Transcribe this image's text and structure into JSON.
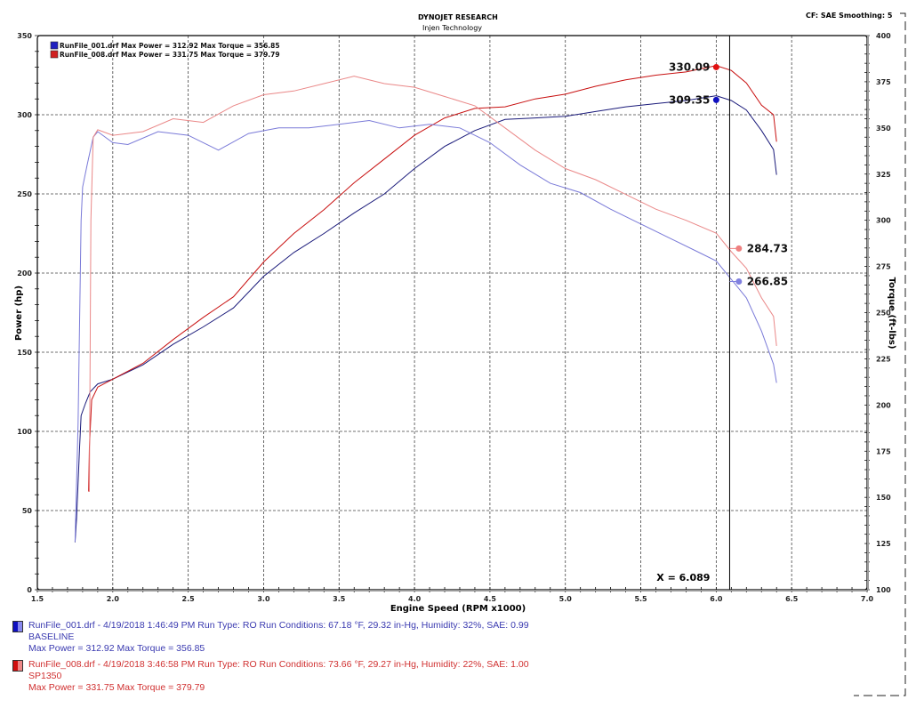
{
  "header": {
    "title": "DYNOJET RESEARCH",
    "subtitle": "Injen Technology",
    "settings": "CF: SAE  Smoothing: 5"
  },
  "chart_data": {
    "type": "line",
    "xlabel": "Engine Speed (RPM x1000)",
    "ylabel_left": "Power (hp)",
    "ylabel_right": "Torque (ft-lbs)",
    "xlim": [
      1.5,
      7.0
    ],
    "ylim_left": [
      0,
      350
    ],
    "ylim_right": [
      100,
      400
    ],
    "x_ticks": [
      "1.5",
      "2.0",
      "2.5",
      "3.0",
      "3.5",
      "4.0",
      "4.5",
      "5.0",
      "5.5",
      "6.0",
      "6.5",
      "7.0"
    ],
    "y_left_ticks": [
      "0",
      "50",
      "100",
      "150",
      "200",
      "250",
      "300",
      "350"
    ],
    "y_right_ticks": [
      "100",
      "125",
      "150",
      "175",
      "200",
      "225",
      "250",
      "275",
      "300",
      "325",
      "350",
      "375",
      "400"
    ],
    "grid": true,
    "legend": [
      {
        "label": "RunFile_001.drf Max Power = 312.92    Max Torque = 356.85",
        "color": "#2020c0"
      },
      {
        "label": "RunFile_008.drf Max Power = 331.75    Max Torque = 379.79",
        "color": "#d02020"
      }
    ],
    "legend_placement": "top-left",
    "cursor": {
      "x": 6.089,
      "label": "X = 6.089"
    },
    "annotations": [
      {
        "text": "330.09",
        "series": "RunFile_008 Power",
        "color": "#e01010"
      },
      {
        "text": "309.35",
        "series": "RunFile_001 Power",
        "color": "#1010c0"
      },
      {
        "text": "284.73",
        "series": "RunFile_008 Torque",
        "color": "#ee8080"
      },
      {
        "text": "266.85",
        "series": "RunFile_001 Torque",
        "color": "#8080e0"
      }
    ],
    "series": [
      {
        "run": "RunFile_001",
        "quantity": "power",
        "axis": "left",
        "color": "#1a1a7a",
        "points": [
          [
            1.75,
            30
          ],
          [
            1.76,
            45
          ],
          [
            1.78,
            90
          ],
          [
            1.79,
            110
          ],
          [
            1.82,
            118
          ],
          [
            1.85,
            125
          ],
          [
            1.9,
            130
          ],
          [
            2.0,
            133
          ],
          [
            2.2,
            142
          ],
          [
            2.4,
            155
          ],
          [
            2.6,
            166
          ],
          [
            2.8,
            178
          ],
          [
            3.0,
            198
          ],
          [
            3.2,
            213
          ],
          [
            3.4,
            225
          ],
          [
            3.6,
            238
          ],
          [
            3.8,
            250
          ],
          [
            4.0,
            266
          ],
          [
            4.2,
            280
          ],
          [
            4.4,
            290
          ],
          [
            4.6,
            297
          ],
          [
            4.8,
            298
          ],
          [
            5.0,
            299
          ],
          [
            5.2,
            302
          ],
          [
            5.4,
            305
          ],
          [
            5.6,
            307
          ],
          [
            5.8,
            309
          ],
          [
            6.0,
            312
          ],
          [
            6.1,
            309
          ],
          [
            6.2,
            303
          ],
          [
            6.3,
            290
          ],
          [
            6.38,
            278
          ],
          [
            6.4,
            262
          ]
        ]
      },
      {
        "run": "RunFile_008",
        "quantity": "power",
        "axis": "left",
        "color": "#c81010",
        "points": [
          [
            1.84,
            62
          ],
          [
            1.845,
            90
          ],
          [
            1.86,
            120
          ],
          [
            1.9,
            128
          ],
          [
            2.0,
            133
          ],
          [
            2.2,
            143
          ],
          [
            2.4,
            158
          ],
          [
            2.6,
            172
          ],
          [
            2.8,
            185
          ],
          [
            3.0,
            207
          ],
          [
            3.2,
            225
          ],
          [
            3.4,
            240
          ],
          [
            3.6,
            257
          ],
          [
            3.8,
            272
          ],
          [
            4.0,
            287
          ],
          [
            4.2,
            298
          ],
          [
            4.4,
            304
          ],
          [
            4.6,
            305
          ],
          [
            4.8,
            310
          ],
          [
            5.0,
            313
          ],
          [
            5.2,
            318
          ],
          [
            5.4,
            322
          ],
          [
            5.6,
            325
          ],
          [
            5.8,
            327
          ],
          [
            6.0,
            331
          ],
          [
            6.1,
            328
          ],
          [
            6.2,
            320
          ],
          [
            6.3,
            306
          ],
          [
            6.38,
            300
          ],
          [
            6.4,
            283
          ]
        ]
      },
      {
        "run": "RunFile_001",
        "quantity": "torque",
        "axis": "right",
        "color": "#7a7ad8",
        "points": [
          [
            1.75,
            126
          ],
          [
            1.77,
            190
          ],
          [
            1.79,
            300
          ],
          [
            1.8,
            318
          ],
          [
            1.83,
            330
          ],
          [
            1.87,
            345
          ],
          [
            1.9,
            348
          ],
          [
            2.0,
            342
          ],
          [
            2.1,
            341
          ],
          [
            2.3,
            348
          ],
          [
            2.5,
            346
          ],
          [
            2.7,
            338
          ],
          [
            2.9,
            347
          ],
          [
            3.1,
            350
          ],
          [
            3.3,
            350
          ],
          [
            3.5,
            352
          ],
          [
            3.7,
            354
          ],
          [
            3.9,
            350
          ],
          [
            4.1,
            352
          ],
          [
            4.3,
            350
          ],
          [
            4.5,
            342
          ],
          [
            4.7,
            330
          ],
          [
            4.9,
            320
          ],
          [
            5.1,
            315
          ],
          [
            5.3,
            306
          ],
          [
            5.5,
            298
          ],
          [
            5.7,
            290
          ],
          [
            5.9,
            282
          ],
          [
            6.0,
            278
          ],
          [
            6.1,
            268
          ],
          [
            6.2,
            258
          ],
          [
            6.3,
            240
          ],
          [
            6.38,
            222
          ],
          [
            6.4,
            212
          ]
        ]
      },
      {
        "run": "RunFile_008",
        "quantity": "torque",
        "axis": "right",
        "color": "#ea8888",
        "points": [
          [
            1.845,
            153
          ],
          [
            1.855,
            300
          ],
          [
            1.87,
            345
          ],
          [
            1.9,
            349
          ],
          [
            2.0,
            346
          ],
          [
            2.2,
            348
          ],
          [
            2.4,
            355
          ],
          [
            2.6,
            353
          ],
          [
            2.8,
            362
          ],
          [
            3.0,
            368
          ],
          [
            3.2,
            370
          ],
          [
            3.4,
            374
          ],
          [
            3.6,
            378
          ],
          [
            3.8,
            374
          ],
          [
            4.0,
            372
          ],
          [
            4.2,
            367
          ],
          [
            4.4,
            362
          ],
          [
            4.6,
            350
          ],
          [
            4.8,
            338
          ],
          [
            5.0,
            328
          ],
          [
            5.2,
            322
          ],
          [
            5.4,
            314
          ],
          [
            5.6,
            306
          ],
          [
            5.8,
            300
          ],
          [
            6.0,
            293
          ],
          [
            6.1,
            283
          ],
          [
            6.2,
            274
          ],
          [
            6.3,
            258
          ],
          [
            6.38,
            248
          ],
          [
            6.4,
            232
          ]
        ]
      }
    ]
  },
  "runs": [
    {
      "line1": "RunFile_001.drf - 4/19/2018 1:46:49 PM  Run Type: RO  Run Conditions: 67.18 °F, 29.32 in-Hg,  Humidity:  32%, SAE: 0.99",
      "name": "BASELINE",
      "max": "Max Power = 312.92  Max Torque = 356.85",
      "color": "#1a1ad0"
    },
    {
      "run_id": "008",
      "line1": "RunFile_008.drf - 4/19/2018 3:46:58 PM  Run Type: RO  Run Conditions: 73.66 °F, 29.27 in-Hg,  Humidity:  22%, SAE: 1.00",
      "name": "SP1350",
      "max": "Max Power = 331.75  Max Torque = 379.79",
      "color": "#e01a1a"
    }
  ]
}
